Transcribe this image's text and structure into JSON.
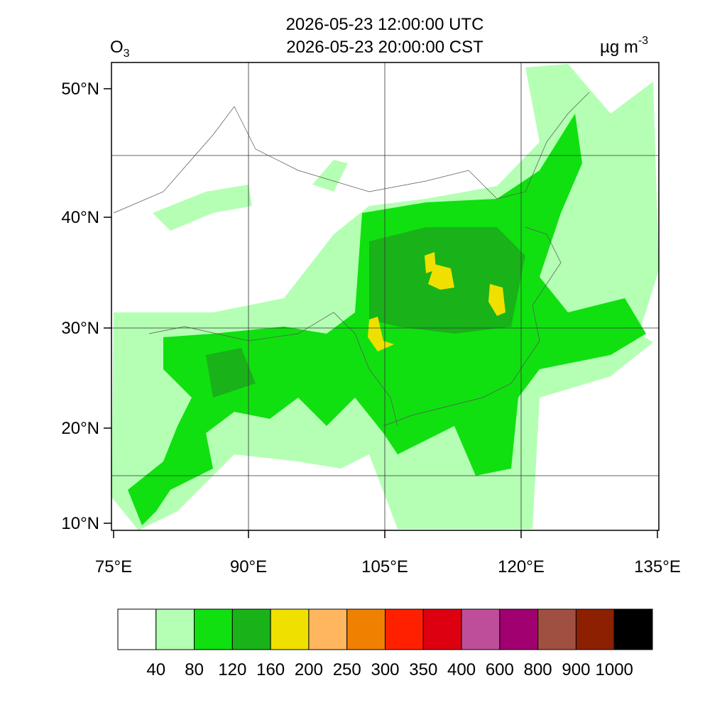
{
  "header": {
    "utc": "2026-05-23 12:00:00 UTC",
    "cst": "2026-05-23 20:00:00 CST",
    "species": "O",
    "species_sub": "3",
    "units": "µg m",
    "units_sup": "-3"
  },
  "axes": {
    "lat_labels": [
      "50°N",
      "40°N",
      "30°N",
      "20°N",
      "10°N"
    ],
    "lon_labels": [
      "75°E",
      "90°E",
      "105°E",
      "120°E",
      "135°E"
    ]
  },
  "legend": {
    "levels": [
      40,
      80,
      120,
      160,
      200,
      250,
      300,
      350,
      400,
      600,
      800,
      900,
      1000
    ],
    "colors": [
      "#ffffff",
      "#b4ffb4",
      "#10e010",
      "#19b219",
      "#f0e000",
      "#ffb65e",
      "#f08000",
      "#ff2000",
      "#dc0010",
      "#be4e9a",
      "#a00070",
      "#a05040",
      "#8c2000",
      "#000000"
    ]
  }
}
